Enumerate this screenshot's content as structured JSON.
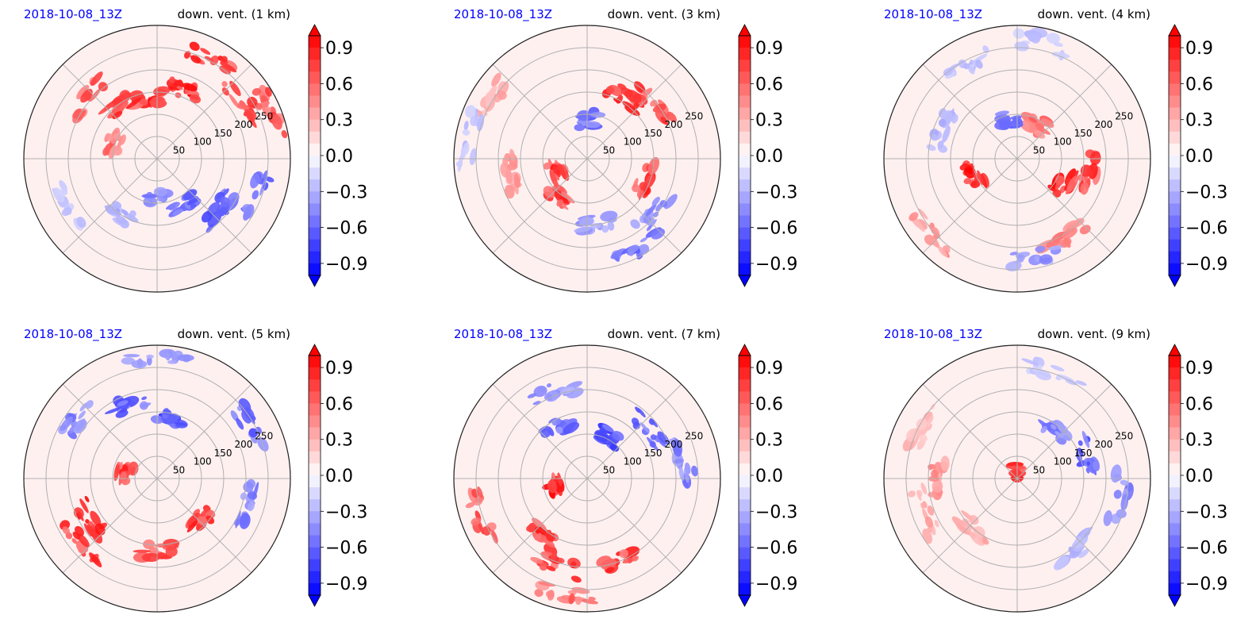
{
  "chart_data": [
    {
      "type": "heatmap",
      "projection": "polar",
      "title_left": "2018-10-08_13Z",
      "title_right": "down. vent. (1 km)",
      "ring_labels": [
        "50",
        "100",
        "150",
        "200",
        "250"
      ],
      "colorbar_ticks": [
        "0.9",
        "0.6",
        "0.3",
        "0.0",
        "−0.3",
        "−0.6",
        "−0.9"
      ],
      "colorbar_range": [
        -1.0,
        1.0
      ],
      "colorbar_extend": "both",
      "colormap": "bwr",
      "grid": true,
      "features": [
        {
          "r": 0.55,
          "theta": 70,
          "v": 1.0
        },
        {
          "r": 0.45,
          "theta": 100,
          "v": 0.95
        },
        {
          "r": 0.5,
          "theta": 125,
          "v": 0.9
        },
        {
          "r": 0.85,
          "theta": 60,
          "v": 1.0
        },
        {
          "r": 0.78,
          "theta": 35,
          "v": 0.9
        },
        {
          "r": 0.92,
          "theta": 20,
          "v": 0.8
        },
        {
          "r": 0.35,
          "theta": 160,
          "v": 0.7
        },
        {
          "r": 0.7,
          "theta": 140,
          "v": 0.8
        },
        {
          "r": 0.4,
          "theta": -60,
          "v": -0.7
        },
        {
          "r": 0.6,
          "theta": -40,
          "v": -0.8
        },
        {
          "r": 0.8,
          "theta": -20,
          "v": -0.7
        },
        {
          "r": 0.5,
          "theta": -120,
          "v": -0.4
        },
        {
          "r": 0.75,
          "theta": -150,
          "v": -0.3
        },
        {
          "r": 0.3,
          "theta": -90,
          "v": -0.6
        }
      ]
    },
    {
      "type": "heatmap",
      "projection": "polar",
      "title_left": "2018-10-08_13Z",
      "title_right": "down. vent. (3 km)",
      "ring_labels": [
        "50",
        "100",
        "150",
        "200",
        "250"
      ],
      "colorbar_ticks": [
        "0.9",
        "0.6",
        "0.3",
        "0.0",
        "−0.3",
        "−0.6",
        "−0.9"
      ],
      "colorbar_range": [
        -1.0,
        1.0
      ],
      "colorbar_extend": "both",
      "colormap": "bwr",
      "grid": true,
      "features": [
        {
          "r": 0.55,
          "theta": 60,
          "v": 1.0
        },
        {
          "r": 0.7,
          "theta": 40,
          "v": 0.9
        },
        {
          "r": 0.25,
          "theta": 200,
          "v": 0.95
        },
        {
          "r": 0.35,
          "theta": 230,
          "v": 0.9
        },
        {
          "r": 0.45,
          "theta": -20,
          "v": 0.9
        },
        {
          "r": 0.6,
          "theta": 190,
          "v": 0.5
        },
        {
          "r": 0.85,
          "theta": 150,
          "v": 0.4
        },
        {
          "r": 0.3,
          "theta": 90,
          "v": -0.7
        },
        {
          "r": 0.65,
          "theta": -40,
          "v": -0.6
        },
        {
          "r": 0.8,
          "theta": -60,
          "v": -0.7
        },
        {
          "r": 0.5,
          "theta": -80,
          "v": -0.5
        },
        {
          "r": 0.9,
          "theta": 170,
          "v": -0.3
        }
      ]
    },
    {
      "type": "heatmap",
      "projection": "polar",
      "title_left": "2018-10-08_13Z",
      "title_right": "down. vent. (4 km)",
      "ring_labels": [
        "50",
        "100",
        "150",
        "200",
        "250"
      ],
      "colorbar_ticks": [
        "0.9",
        "0.6",
        "0.3",
        "0.0",
        "−0.3",
        "−0.6",
        "−0.9"
      ],
      "colorbar_range": [
        -1.0,
        1.0
      ],
      "colorbar_extend": "both",
      "colormap": "bwr",
      "grid": true,
      "features": [
        {
          "r": 0.35,
          "theta": 200,
          "v": 1.0
        },
        {
          "r": 0.4,
          "theta": -30,
          "v": 1.0
        },
        {
          "r": 0.55,
          "theta": -10,
          "v": 0.9
        },
        {
          "r": 0.3,
          "theta": 60,
          "v": 0.7
        },
        {
          "r": 0.7,
          "theta": -60,
          "v": 0.6
        },
        {
          "r": 0.85,
          "theta": 220,
          "v": 0.5
        },
        {
          "r": 0.6,
          "theta": 160,
          "v": -0.4
        },
        {
          "r": 0.8,
          "theta": 120,
          "v": -0.3
        },
        {
          "r": 0.3,
          "theta": 100,
          "v": -0.7
        },
        {
          "r": 0.9,
          "theta": 80,
          "v": -0.3
        },
        {
          "r": 0.75,
          "theta": -80,
          "v": -0.5
        }
      ]
    },
    {
      "type": "heatmap",
      "projection": "polar",
      "title_left": "2018-10-08_13Z",
      "title_right": "down. vent. (5 km)",
      "ring_labels": [
        "50",
        "100",
        "150",
        "200",
        "250"
      ],
      "colorbar_ticks": [
        "0.9",
        "0.6",
        "0.3",
        "0.0",
        "−0.3",
        "−0.6",
        "−0.9"
      ],
      "colorbar_range": [
        -1.0,
        1.0
      ],
      "colorbar_extend": "both",
      "colormap": "bwr",
      "grid": true,
      "features": [
        {
          "r": 0.6,
          "theta": 210,
          "v": 1.0
        },
        {
          "r": 0.75,
          "theta": 220,
          "v": 0.9
        },
        {
          "r": 0.55,
          "theta": -90,
          "v": 0.9
        },
        {
          "r": 0.45,
          "theta": -40,
          "v": 0.95
        },
        {
          "r": 0.25,
          "theta": 170,
          "v": 0.9
        },
        {
          "r": 0.45,
          "theta": 80,
          "v": -0.9
        },
        {
          "r": 0.6,
          "theta": 110,
          "v": -0.7
        },
        {
          "r": 0.75,
          "theta": 140,
          "v": -0.6
        },
        {
          "r": 0.8,
          "theta": 30,
          "v": -0.7
        },
        {
          "r": 0.9,
          "theta": 90,
          "v": -0.5
        },
        {
          "r": 0.7,
          "theta": -15,
          "v": -0.6
        }
      ]
    },
    {
      "type": "heatmap",
      "projection": "polar",
      "title_left": "2018-10-08_13Z",
      "title_right": "down. vent. (7 km)",
      "ring_labels": [
        "50",
        "100",
        "150",
        "200",
        "250"
      ],
      "colorbar_ticks": [
        "0.9",
        "0.6",
        "0.3",
        "0.0",
        "−0.3",
        "−0.6",
        "−0.9"
      ],
      "colorbar_range": [
        -1.0,
        1.0
      ],
      "colorbar_extend": "both",
      "colormap": "bwr",
      "grid": true,
      "features": [
        {
          "r": 0.25,
          "theta": 190,
          "v": 1.0
        },
        {
          "r": 0.55,
          "theta": 230,
          "v": 0.95
        },
        {
          "r": 0.7,
          "theta": 250,
          "v": 0.9
        },
        {
          "r": 0.65,
          "theta": -70,
          "v": 0.9
        },
        {
          "r": 0.85,
          "theta": 200,
          "v": 0.8
        },
        {
          "r": 0.9,
          "theta": -100,
          "v": 0.7
        },
        {
          "r": 0.45,
          "theta": 120,
          "v": -0.7
        },
        {
          "r": 0.35,
          "theta": 60,
          "v": -0.9
        },
        {
          "r": 0.6,
          "theta": 40,
          "v": -0.7
        },
        {
          "r": 0.75,
          "theta": 10,
          "v": -0.6
        },
        {
          "r": 0.7,
          "theta": 110,
          "v": -0.5
        }
      ]
    },
    {
      "type": "heatmap",
      "projection": "polar",
      "title_left": "2018-10-08_13Z",
      "title_right": "down. vent. (9 km)",
      "ring_labels": [
        "50",
        "100",
        "150",
        "200",
        "250"
      ],
      "colorbar_ticks": [
        "0.9",
        "0.6",
        "0.3",
        "0.0",
        "−0.3",
        "−0.6",
        "−0.9"
      ],
      "colorbar_range": [
        -1.0,
        1.0
      ],
      "colorbar_extend": "both",
      "colormap": "bwr",
      "grid": true,
      "features": [
        {
          "r": 0.6,
          "theta": 180,
          "v": 0.5
        },
        {
          "r": 0.75,
          "theta": 200,
          "v": 0.4
        },
        {
          "r": 0.8,
          "theta": 150,
          "v": 0.35
        },
        {
          "r": 0.5,
          "theta": 230,
          "v": 0.4
        },
        {
          "r": 0.05,
          "theta": 90,
          "v": 1.0
        },
        {
          "r": 0.55,
          "theta": 20,
          "v": -0.8
        },
        {
          "r": 0.45,
          "theta": 50,
          "v": -0.6
        },
        {
          "r": 0.8,
          "theta": -10,
          "v": -0.6
        },
        {
          "r": 0.7,
          "theta": -50,
          "v": -0.4
        },
        {
          "r": 0.85,
          "theta": 70,
          "v": -0.3
        }
      ]
    }
  ]
}
